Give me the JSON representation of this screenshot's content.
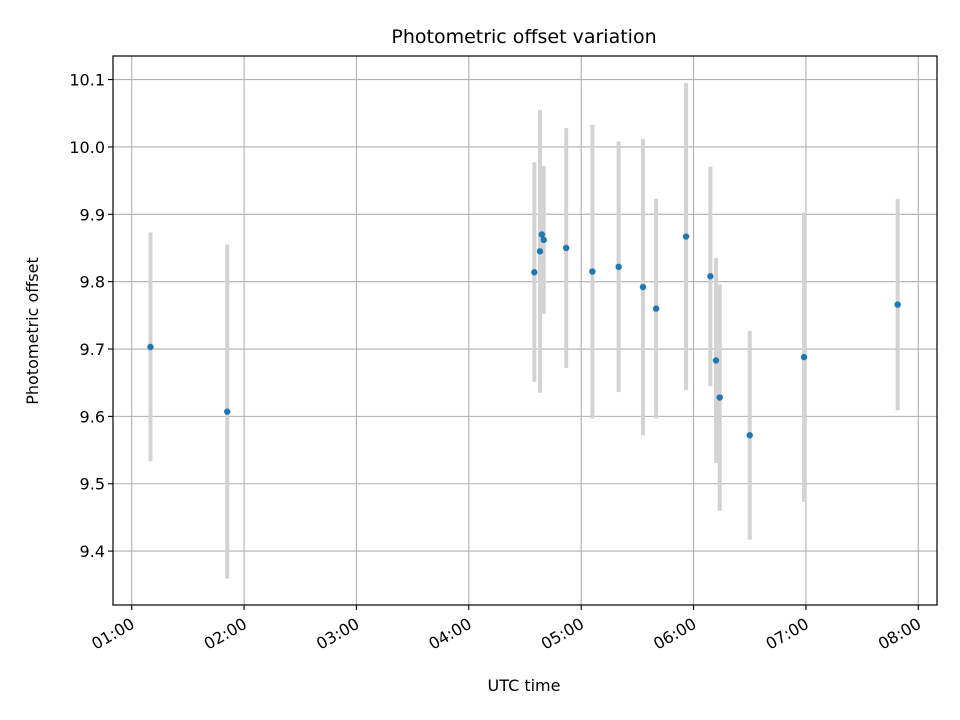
{
  "chart_data": {
    "type": "scatter",
    "title": "Photometric offset variation",
    "xlabel": "UTC time",
    "ylabel": "Photometric offset",
    "grid": true,
    "xlim": [
      "00:50",
      "08:10"
    ],
    "ylim": [
      9.32,
      10.135
    ],
    "x_ticks": [
      "01:00",
      "02:00",
      "03:00",
      "04:00",
      "05:00",
      "06:00",
      "07:00",
      "08:00"
    ],
    "y_ticks": [
      "9.4",
      "9.5",
      "9.6",
      "9.7",
      "9.8",
      "9.9",
      "10.0",
      "10.1"
    ],
    "points": [
      {
        "x": "01:10",
        "y": 9.703,
        "err": 0.17
      },
      {
        "x": "01:51",
        "y": 9.607,
        "err": 0.248
      },
      {
        "x": "04:35",
        "y": 9.814,
        "err": 0.163
      },
      {
        "x": "04:38",
        "y": 9.845,
        "err": 0.21
      },
      {
        "x": "04:39",
        "y": 9.87,
        "err": 0.1
      },
      {
        "x": "04:40",
        "y": 9.862,
        "err": 0.11
      },
      {
        "x": "04:52",
        "y": 9.85,
        "err": 0.178
      },
      {
        "x": "05:06",
        "y": 9.815,
        "err": 0.218
      },
      {
        "x": "05:20",
        "y": 9.822,
        "err": 0.186
      },
      {
        "x": "05:33",
        "y": 9.792,
        "err": 0.22
      },
      {
        "x": "05:40",
        "y": 9.76,
        "err": 0.163
      },
      {
        "x": "05:56",
        "y": 9.867,
        "err": 0.228
      },
      {
        "x": "06:09",
        "y": 9.808,
        "err": 0.163
      },
      {
        "x": "06:12",
        "y": 9.683,
        "err": 0.152
      },
      {
        "x": "06:14",
        "y": 9.628,
        "err": 0.168
      },
      {
        "x": "06:30",
        "y": 9.572,
        "err": 0.155
      },
      {
        "x": "06:59",
        "y": 9.688,
        "err": 0.215
      },
      {
        "x": "07:49",
        "y": 9.766,
        "err": 0.157
      }
    ],
    "colors": {
      "point": "#1f77b4",
      "errorbar": "#d3d3d3",
      "grid": "#b0b0b0"
    }
  }
}
